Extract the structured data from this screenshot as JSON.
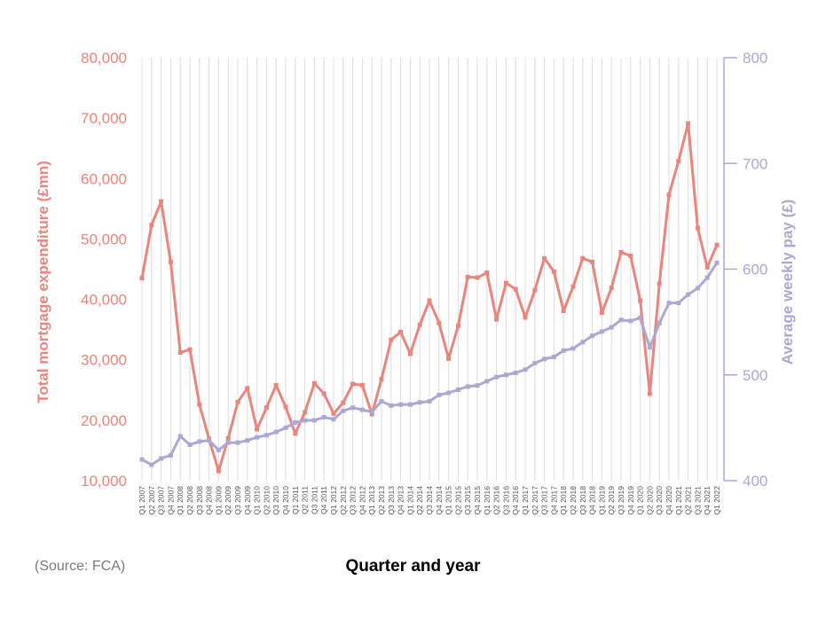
{
  "source_note": "(Source: FCA)",
  "chart_data": {
    "type": "line",
    "title": "",
    "xlabel": "Quarter and year",
    "ylabel_left": "Total mortgage expenditure (£mn)",
    "ylabel_right": "Average weekly pay (£)",
    "ylim_left": [
      10000,
      80000
    ],
    "ylim_right": [
      400,
      800
    ],
    "yticks_left": [
      "10,000",
      "20,000",
      "30,000",
      "40,000",
      "50,000",
      "60,000",
      "70,000",
      "80,000"
    ],
    "yticks_right": [
      "400",
      "500",
      "600",
      "700",
      "800"
    ],
    "grid": "vertical",
    "colors": {
      "left": "#e8857d",
      "right": "#aba8d3",
      "grid": "#dcdcdc"
    },
    "categories": [
      "Q1 2007",
      "Q2 2007",
      "Q3 2007",
      "Q4 2007",
      "Q1 2008",
      "Q2 2008",
      "Q3 2008",
      "Q4 2008",
      "Q1 2009",
      "Q2 2009",
      "Q3 2009",
      "Q4 2009",
      "Q1 2010",
      "Q2 2010",
      "Q3 2010",
      "Q4 2010",
      "Q1 2011",
      "Q2 2011",
      "Q3 2011",
      "Q4 2011",
      "Q1 2012",
      "Q2 2012",
      "Q3 2012",
      "Q4 2012",
      "Q1 2013",
      "Q2 2013",
      "Q3 2013",
      "Q4 2013",
      "Q1 2014",
      "Q2 2014",
      "Q3 2014",
      "Q4 2014",
      "Q1 2015",
      "Q2 2015",
      "Q3 2015",
      "Q4 2015",
      "Q1 2016",
      "Q2 2016",
      "Q3 2016",
      "Q4 2016",
      "Q1 2017",
      "Q2 2017",
      "Q3 2017",
      "Q4 2017",
      "Q1 2018",
      "Q2 2018",
      "Q3 2018",
      "Q4 2018",
      "Q1 2019",
      "Q2 2019",
      "Q3 2019",
      "Q4 2019",
      "Q1 2020",
      "Q2 2020",
      "Q3 2020",
      "Q4 2020",
      "Q1 2021",
      "Q2 2021",
      "Q3 2021",
      "Q4 2021",
      "Q1 2022"
    ],
    "series": [
      {
        "axis": "left",
        "values": [
          43500,
          52300,
          56200,
          46200,
          31200,
          31700,
          22600,
          16900,
          11600,
          17000,
          23000,
          25300,
          18500,
          22100,
          25800,
          22200,
          17800,
          21300,
          26100,
          24400,
          21100,
          22900,
          26000,
          25800,
          21000,
          26800,
          33300,
          34600,
          31000,
          35800,
          39800,
          36100,
          30200,
          35600,
          43700,
          43600,
          44400,
          36700,
          42700,
          41700,
          37000,
          41500,
          46800,
          44600,
          38100,
          42100,
          46800,
          46200,
          37800,
          41900,
          47800,
          47200,
          39800,
          24400,
          42600,
          57300,
          62900,
          69100,
          51800,
          45300,
          49000
        ]
      },
      {
        "axis": "right",
        "values": [
          420,
          415,
          421,
          424,
          442,
          434,
          437,
          438,
          429,
          436,
          436,
          438,
          441,
          443,
          446,
          450,
          455,
          457,
          457,
          460,
          458,
          466,
          469,
          467,
          465,
          475,
          471,
          472,
          472,
          474,
          475,
          481,
          483,
          486,
          489,
          490,
          494,
          498,
          500,
          502,
          505,
          511,
          515,
          517,
          523,
          525,
          531,
          537,
          541,
          545,
          552,
          551,
          554,
          526,
          549,
          568,
          568,
          576,
          582,
          592,
          606
        ]
      }
    ]
  }
}
